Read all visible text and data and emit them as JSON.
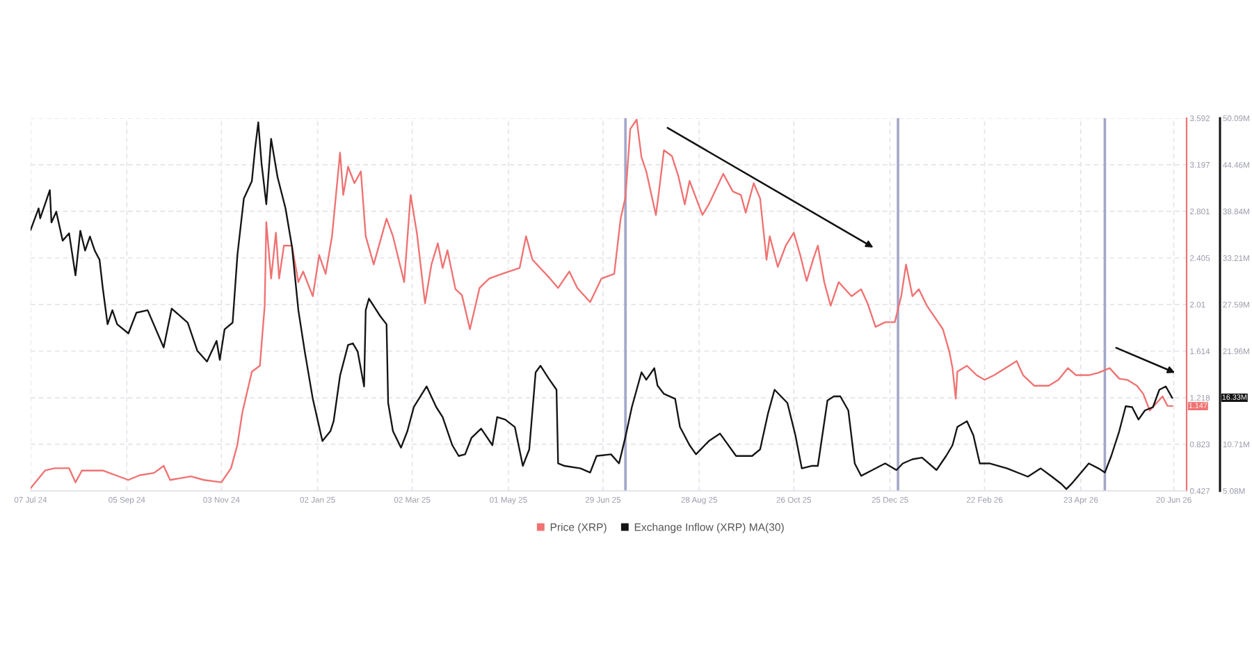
{
  "chart_data": {
    "type": "line",
    "series": [
      {
        "name": "Price (XRP)",
        "color": "#f07272",
        "axis": "y",
        "x": [
          "2024-07-07",
          "2024-07-16",
          "2024-07-22",
          "2024-07-31",
          "2024-08-04",
          "2024-08-08",
          "2024-08-21",
          "2024-09-06",
          "2024-09-13",
          "2024-09-22",
          "2024-09-28",
          "2024-10-02",
          "2024-10-15",
          "2024-10-23",
          "2024-11-03",
          "2024-11-09",
          "2024-11-13",
          "2024-11-16",
          "2024-11-22",
          "2024-11-27",
          "2024-11-30",
          "2024-12-01",
          "2024-12-04",
          "2024-12-07",
          "2024-12-09",
          "2024-12-12",
          "2024-12-17",
          "2024-12-21",
          "2024-12-24",
          "2024-12-30",
          "2025-01-03",
          "2025-01-07",
          "2025-01-11",
          "2025-01-16",
          "2025-01-18",
          "2025-01-21",
          "2025-01-25",
          "2025-01-29",
          "2025-02-01",
          "2025-02-06",
          "2025-02-14",
          "2025-02-18",
          "2025-02-25",
          "2025-03-01",
          "2025-03-05",
          "2025-03-10",
          "2025-03-14",
          "2025-03-18",
          "2025-03-21",
          "2025-03-24",
          "2025-03-29",
          "2025-04-02",
          "2025-04-07",
          "2025-04-13",
          "2025-04-19",
          "2025-04-27",
          "2025-05-08",
          "2025-05-12",
          "2025-05-16",
          "2025-05-27",
          "2025-06-01",
          "2025-06-08",
          "2025-06-13",
          "2025-06-21",
          "2025-06-28",
          "2025-07-06",
          "2025-07-10",
          "2025-07-13",
          "2025-07-16",
          "2025-07-20",
          "2025-07-23",
          "2025-07-26",
          "2025-08-01",
          "2025-08-03",
          "2025-08-06",
          "2025-08-11",
          "2025-08-15",
          "2025-08-19",
          "2025-08-22",
          "2025-08-30",
          "2025-09-03",
          "2025-09-12",
          "2025-09-18",
          "2025-09-23",
          "2025-09-26",
          "2025-10-01",
          "2025-10-05",
          "2025-10-09",
          "2025-10-11",
          "2025-10-16",
          "2025-10-21",
          "2025-10-26",
          "2025-10-30",
          "2025-11-03",
          "2025-11-07",
          "2025-11-10",
          "2025-11-14",
          "2025-11-18",
          "2025-11-23",
          "2025-12-01",
          "2025-12-07",
          "2025-12-11",
          "2025-12-16",
          "2025-12-22",
          "2025-12-28",
          "2026-01-01",
          "2026-01-04",
          "2026-01-08",
          "2026-01-12",
          "2026-01-17",
          "2026-01-21",
          "2026-01-27",
          "2026-01-31",
          "2026-02-02",
          "2026-02-04",
          "2026-02-05",
          "2026-02-11",
          "2026-02-17",
          "2026-02-22",
          "2026-02-28",
          "2026-03-14",
          "2026-03-18",
          "2026-03-25",
          "2026-04-03",
          "2026-04-09",
          "2026-04-15",
          "2026-04-20",
          "2026-04-28",
          "2026-05-04",
          "2026-05-11",
          "2026-05-17",
          "2026-05-22",
          "2026-05-28",
          "2026-06-01",
          "2026-06-05",
          "2026-06-09",
          "2026-06-13",
          "2026-06-16",
          "2026-06-19"
        ],
        "values": [
          0.45,
          0.6,
          0.62,
          0.62,
          0.5,
          0.6,
          0.6,
          0.52,
          0.56,
          0.58,
          0.64,
          0.52,
          0.55,
          0.52,
          0.5,
          0.62,
          0.82,
          1.09,
          1.44,
          1.49,
          2.0,
          2.71,
          2.23,
          2.62,
          2.23,
          2.51,
          2.51,
          2.2,
          2.29,
          2.08,
          2.43,
          2.27,
          2.59,
          3.3,
          2.94,
          3.18,
          3.04,
          3.14,
          2.59,
          2.35,
          2.74,
          2.59,
          2.2,
          2.94,
          2.61,
          2.02,
          2.35,
          2.53,
          2.32,
          2.47,
          2.14,
          2.09,
          1.8,
          2.15,
          2.23,
          2.27,
          2.32,
          2.59,
          2.39,
          2.23,
          2.15,
          2.29,
          2.15,
          2.03,
          2.23,
          2.27,
          2.74,
          2.92,
          3.5,
          3.58,
          3.26,
          3.14,
          2.77,
          2.98,
          3.32,
          3.27,
          3.1,
          2.86,
          3.06,
          2.77,
          2.86,
          3.12,
          2.97,
          2.94,
          2.79,
          3.04,
          2.91,
          2.39,
          2.59,
          2.33,
          2.51,
          2.62,
          2.43,
          2.21,
          2.39,
          2.51,
          2.2,
          2.0,
          2.2,
          2.08,
          2.14,
          2.02,
          1.82,
          1.86,
          1.86,
          2.08,
          2.35,
          2.08,
          2.14,
          2.0,
          1.92,
          1.8,
          1.61,
          1.47,
          1.21,
          1.44,
          1.49,
          1.41,
          1.37,
          1.41,
          1.53,
          1.41,
          1.32,
          1.32,
          1.37,
          1.47,
          1.41,
          1.41,
          1.43,
          1.47,
          1.38,
          1.37,
          1.32,
          1.25,
          1.11,
          1.17,
          1.23,
          1.15,
          1.147
        ]
      },
      {
        "name": "Exchange Inflow (XRP) MA(30)",
        "color": "#141414",
        "axis": "y2",
        "x": [
          "2024-07-07",
          "2024-07-12",
          "2024-07-13",
          "2024-07-19",
          "2024-07-20",
          "2024-07-23",
          "2024-07-27",
          "2024-07-31",
          "2024-08-04",
          "2024-08-07",
          "2024-08-10",
          "2024-08-13",
          "2024-08-16",
          "2024-08-19",
          "2024-08-21",
          "2024-08-24",
          "2024-08-27",
          "2024-08-30",
          "2024-09-06",
          "2024-09-11",
          "2024-09-18",
          "2024-09-28",
          "2024-10-03",
          "2024-10-13",
          "2024-10-19",
          "2024-10-25",
          "2024-10-31",
          "2024-11-02",
          "2024-11-05",
          "2024-11-10",
          "2024-11-13",
          "2024-11-17",
          "2024-11-22",
          "2024-11-24",
          "2024-11-26",
          "2024-11-28",
          "2024-12-01",
          "2024-12-04",
          "2024-12-08",
          "2024-12-13",
          "2024-12-17",
          "2024-12-21",
          "2024-12-25",
          "2024-12-30",
          "2025-01-01",
          "2025-01-05",
          "2025-01-10",
          "2025-01-12",
          "2025-01-16",
          "2025-01-21",
          "2025-01-24",
          "2025-01-27",
          "2025-01-31",
          "2025-02-01",
          "2025-02-03",
          "2025-02-06",
          "2025-02-10",
          "2025-02-14",
          "2025-02-15",
          "2025-02-18",
          "2025-02-23",
          "2025-02-27",
          "2025-03-03",
          "2025-03-11",
          "2025-03-17",
          "2025-03-21",
          "2025-03-27",
          "2025-03-31",
          "2025-04-04",
          "2025-04-08",
          "2025-04-14",
          "2025-04-21",
          "2025-04-24",
          "2025-04-29",
          "2025-05-05",
          "2025-05-10",
          "2025-05-14",
          "2025-05-18",
          "2025-05-21",
          "2025-05-26",
          "2025-05-31",
          "2025-06-01",
          "2025-06-05",
          "2025-06-15",
          "2025-06-21",
          "2025-06-25",
          "2025-07-04",
          "2025-07-09",
          "2025-07-13",
          "2025-07-17",
          "2025-07-23",
          "2025-07-26",
          "2025-07-31",
          "2025-08-02",
          "2025-08-06",
          "2025-08-13",
          "2025-08-16",
          "2025-08-22",
          "2025-08-26",
          "2025-09-03",
          "2025-09-10",
          "2025-09-20",
          "2025-09-30",
          "2025-10-05",
          "2025-10-10",
          "2025-10-14",
          "2025-10-18",
          "2025-10-22",
          "2025-10-27",
          "2025-10-31",
          "2025-11-06",
          "2025-11-10",
          "2025-11-16",
          "2025-11-20",
          "2025-11-24",
          "2025-11-29",
          "2025-12-03",
          "2025-12-07",
          "2025-12-14",
          "2025-12-22",
          "2025-12-29",
          "2026-01-02",
          "2026-01-08",
          "2026-01-14",
          "2026-01-23",
          "2026-01-29",
          "2026-02-02",
          "2026-02-05",
          "2026-02-11",
          "2026-02-15",
          "2026-02-19",
          "2026-02-25",
          "2026-03-08",
          "2026-03-21",
          "2026-03-29",
          "2026-04-05",
          "2026-04-11",
          "2026-04-14",
          "2026-04-18",
          "2026-04-28",
          "2026-05-04",
          "2026-05-08",
          "2026-05-12",
          "2026-05-17",
          "2026-05-21",
          "2026-05-25",
          "2026-05-29",
          "2026-06-02",
          "2026-06-07",
          "2026-06-11",
          "2026-06-15",
          "2026-06-19"
        ],
        "values": [
          36.6,
          39.2,
          38.0,
          41.4,
          37.5,
          38.8,
          35.3,
          36.2,
          31.1,
          36.5,
          34.1,
          35.8,
          34.1,
          33.0,
          29.6,
          25.2,
          26.9,
          25.2,
          24.1,
          26.6,
          26.9,
          22.4,
          27.1,
          25.4,
          22.0,
          20.7,
          23.2,
          20.9,
          24.6,
          25.4,
          33.6,
          40.4,
          42.5,
          46.4,
          49.6,
          44.7,
          39.7,
          47.6,
          43.0,
          39.2,
          34.6,
          26.9,
          21.9,
          16.2,
          14.5,
          11.1,
          12.3,
          13.5,
          19.0,
          22.7,
          22.9,
          21.9,
          17.7,
          26.9,
          28.3,
          27.4,
          26.2,
          25.2,
          15.7,
          12.3,
          10.3,
          12.3,
          15.2,
          17.7,
          15.2,
          14.0,
          10.6,
          9.3,
          9.5,
          11.5,
          12.6,
          10.6,
          14.0,
          13.7,
          12.8,
          8.1,
          10.1,
          19.4,
          20.2,
          18.7,
          17.3,
          8.4,
          8.1,
          7.8,
          7.3,
          9.3,
          9.5,
          8.4,
          11.6,
          15.2,
          19.4,
          18.5,
          19.9,
          17.8,
          16.8,
          16.2,
          12.8,
          10.6,
          9.5,
          11.1,
          12.0,
          9.3,
          9.3,
          10.1,
          14.5,
          17.3,
          16.5,
          15.7,
          11.8,
          7.8,
          8.1,
          8.1,
          16.0,
          16.5,
          16.5,
          14.8,
          8.4,
          6.9,
          7.6,
          8.4,
          7.6,
          8.4,
          8.9,
          9.1,
          7.6,
          9.3,
          10.6,
          12.8,
          13.5,
          11.8,
          8.4,
          8.4,
          7.8,
          6.8,
          7.8,
          6.8,
          5.9,
          5.3,
          6.1,
          8.4,
          7.8,
          7.3,
          9.3,
          12.3,
          15.3,
          15.2,
          13.7,
          14.8,
          15.2,
          17.3,
          17.7,
          16.33
        ]
      }
    ],
    "xlim": [
      "2024-07-07",
      "2026-06-28"
    ],
    "xticks": [
      {
        "value": "2024-07-07",
        "label": "07 Jul 24"
      },
      {
        "value": "2024-09-05",
        "label": "05 Sep 24"
      },
      {
        "value": "2024-11-03",
        "label": "03 Nov 24"
      },
      {
        "value": "2025-01-02",
        "label": "02 Jan 25"
      },
      {
        "value": "2025-03-02",
        "label": "02 Mar 25"
      },
      {
        "value": "2025-05-01",
        "label": "01 May 25"
      },
      {
        "value": "2025-06-29",
        "label": "29 Jun 25"
      },
      {
        "value": "2025-08-28",
        "label": "28 Aug 25"
      },
      {
        "value": "2025-10-26",
        "label": "26 Oct 25"
      },
      {
        "value": "2025-12-25",
        "label": "25 Dec 25"
      },
      {
        "value": "2026-02-22",
        "label": "22 Feb 26"
      },
      {
        "value": "2026-04-23",
        "label": "23 Apr 26"
      },
      {
        "value": "2026-06-20",
        "label": "20 Jun 26"
      }
    ],
    "ylim": [
      0.427,
      3.592
    ],
    "yticks": [
      0.427,
      0.823,
      1.218,
      1.614,
      2.01,
      2.405,
      2.801,
      3.197,
      3.592
    ],
    "y2lim": [
      5.08,
      50.09
    ],
    "y2ticks": [
      {
        "value": 5.08,
        "label": "5.08M"
      },
      {
        "value": 10.71,
        "label": "10.71M"
      },
      {
        "value": 16.33,
        "label": null
      },
      {
        "value": 21.96,
        "label": "21.96M"
      },
      {
        "value": 27.59,
        "label": "27.59M"
      },
      {
        "value": 33.21,
        "label": "33.21M"
      },
      {
        "value": 38.84,
        "label": "38.84M"
      },
      {
        "value": 44.46,
        "label": "44.46M"
      },
      {
        "value": 50.09,
        "label": "50.09M"
      }
    ],
    "ref_lines": [
      {
        "axis": "x",
        "value": "2025-07-13",
        "color": "#a3a7c9"
      },
      {
        "axis": "x",
        "value": "2025-12-30",
        "color": "#a3a7c9"
      },
      {
        "axis": "x",
        "value": "2026-05-08",
        "color": "#a3a7c9"
      }
    ],
    "annotations": [
      "1.147",
      "16.33M"
    ],
    "grid": true,
    "legend": "bottom"
  }
}
